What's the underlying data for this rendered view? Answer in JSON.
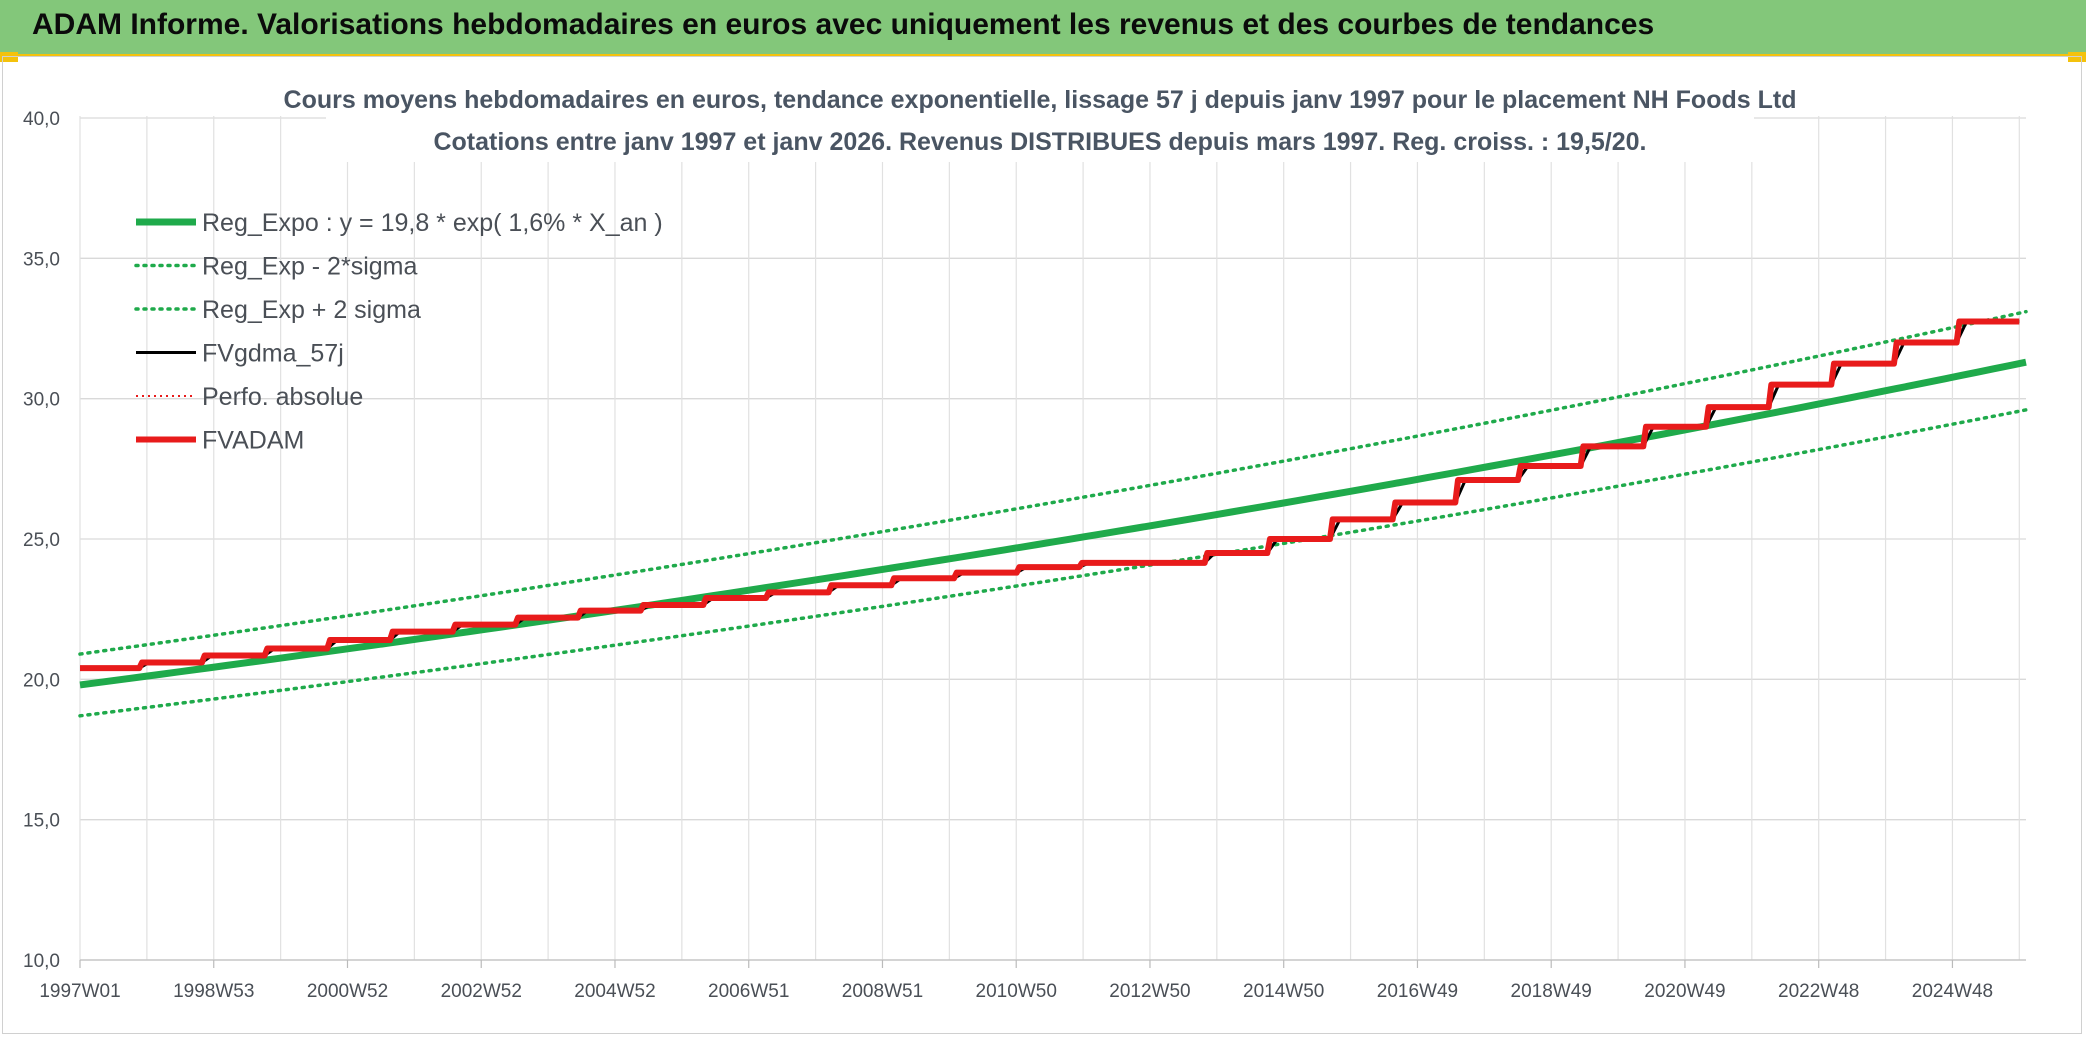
{
  "banner": {
    "title": "ADAM Informe. Valorisations hebdomadaires en euros avec uniquement les revenus et des courbes de tendances"
  },
  "chart_data": {
    "type": "line",
    "title_line1": "Cours moyens hebdomadaires en euros, tendance exponentielle, lissage 57 j depuis janv 1997 pour le placement NH Foods Ltd",
    "title_line2": "Cotations entre janv 1997 et janv 2026. Revenus DISTRIBUES depuis mars 1997. Reg. croiss. : 19,5/20.",
    "ylim": [
      10,
      40
    ],
    "y_ticks": [
      "10,0",
      "15,0",
      "20,0",
      "25,0",
      "30,0",
      "35,0",
      "40,0"
    ],
    "x_range": [
      1997.0,
      2026.1
    ],
    "x_ticks": [
      {
        "label": "1997W01",
        "x": 1997.0
      },
      {
        "label": "1998W53",
        "x": 1999.0
      },
      {
        "label": "2000W52",
        "x": 2001.0
      },
      {
        "label": "2002W52",
        "x": 2003.0
      },
      {
        "label": "2004W52",
        "x": 2005.0
      },
      {
        "label": "2006W51",
        "x": 2007.0
      },
      {
        "label": "2008W51",
        "x": 2009.0
      },
      {
        "label": "2010W50",
        "x": 2011.0
      },
      {
        "label": "2012W50",
        "x": 2013.0
      },
      {
        "label": "2014W50",
        "x": 2015.0
      },
      {
        "label": "2016W49",
        "x": 2017.0
      },
      {
        "label": "2018W49",
        "x": 2019.0
      },
      {
        "label": "2020W49",
        "x": 2021.0
      },
      {
        "label": "2022W48",
        "x": 2023.0
      },
      {
        "label": "2024W48",
        "x": 2025.0
      }
    ],
    "grid": true,
    "legend_position": "top-left",
    "series": [
      {
        "name": "Reg_Expo : y = 19,8 * exp( 1,6% *  X_an )",
        "color": "#1faa4b",
        "style": "solid-thick",
        "points": [
          [
            1997.0,
            19.8
          ],
          [
            2026.1,
            31.3
          ]
        ]
      },
      {
        "name": "Reg_Exp - 2*sigma",
        "color": "#1faa4b",
        "style": "dotted",
        "points": [
          [
            1997.0,
            18.7
          ],
          [
            2026.1,
            29.6
          ]
        ]
      },
      {
        "name": "Reg_Exp + 2 sigma",
        "color": "#1faa4b",
        "style": "dotted",
        "points": [
          [
            1997.0,
            20.9
          ],
          [
            2026.1,
            33.1
          ]
        ]
      },
      {
        "name": "FVgdma_57j",
        "color": "#000000",
        "style": "solid-thin",
        "steps": [
          20.4,
          20.6,
          20.85,
          21.1,
          21.4,
          21.7,
          21.95,
          22.2,
          22.45,
          22.65,
          22.9,
          23.1,
          23.35,
          23.6,
          23.8,
          24.0,
          24.15,
          24.15,
          24.5,
          25.0,
          25.7,
          26.3,
          27.1,
          27.6,
          28.3,
          29.0,
          29.7,
          30.5,
          31.25,
          32.0,
          32.75
        ]
      },
      {
        "name": "Perfo. absolue",
        "color": "#e81b1b",
        "style": "dotted-thin",
        "points": []
      },
      {
        "name": "FVADAM",
        "color": "#e81b1b",
        "style": "solid-thick",
        "steps": [
          20.4,
          20.6,
          20.85,
          21.1,
          21.4,
          21.7,
          21.95,
          22.2,
          22.45,
          22.65,
          22.9,
          23.1,
          23.35,
          23.6,
          23.8,
          24.0,
          24.15,
          24.15,
          24.5,
          25.0,
          25.7,
          26.3,
          27.1,
          27.6,
          28.3,
          29.0,
          29.7,
          30.5,
          31.25,
          32.0,
          32.75
        ]
      }
    ]
  }
}
